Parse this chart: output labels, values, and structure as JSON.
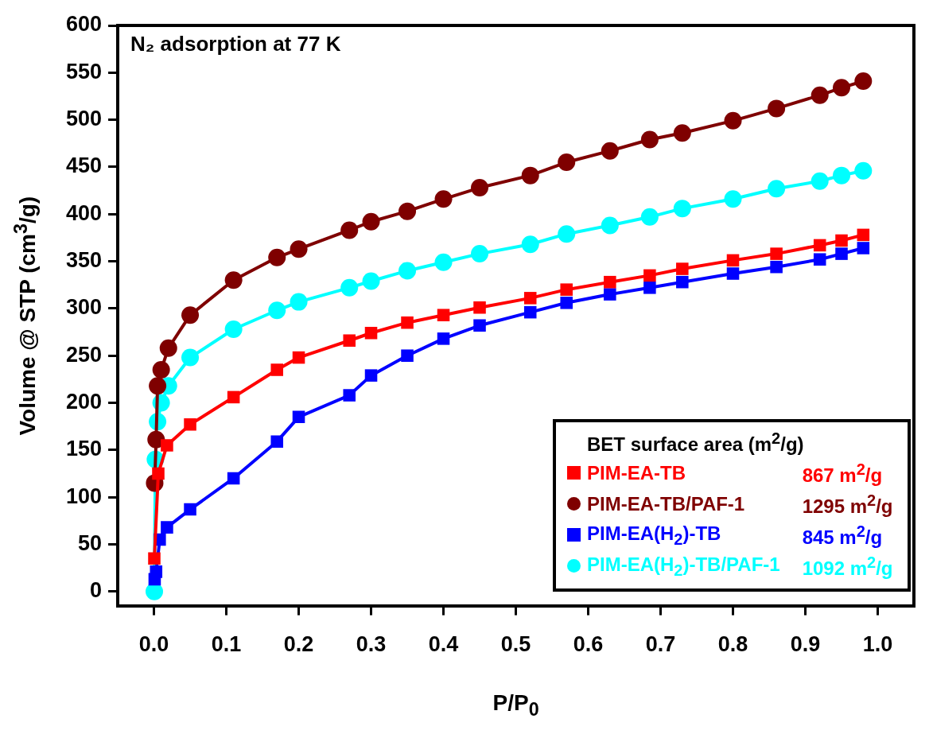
{
  "chart_data": {
    "type": "line",
    "title": "N₂ adsorption at 77 K",
    "xlabel": "P/P$_{0}$",
    "ylabel": "Volume @ STP (cm$^{3}$/g)",
    "legend_title": "BET surface area (m$^{2}$/g)",
    "annotations": [
      "867 m$^{2}$/g",
      "1295 m$^{2}$/g",
      "845 m$^{2}$/g",
      "1092 m$^{2}$/g"
    ],
    "xlim": [
      -0.05,
      1.05
    ],
    "ylim": [
      -15,
      600
    ],
    "xticks": [
      {
        "value": 0,
        "label": "0.0"
      },
      {
        "value": 0.1,
        "label": "0.1"
      },
      {
        "value": 0.2,
        "label": "0.2"
      },
      {
        "value": 0.3,
        "label": "0.3"
      },
      {
        "value": 0.4,
        "label": "0.4"
      },
      {
        "value": 0.5,
        "label": "0.5"
      },
      {
        "value": 0.6,
        "label": "0.6"
      },
      {
        "value": 0.7,
        "label": "0.7"
      },
      {
        "value": 0.8,
        "label": "0.8"
      },
      {
        "value": 0.9,
        "label": "0.9"
      },
      {
        "value": 1,
        "label": "1.0"
      }
    ],
    "yticks": [
      0,
      50,
      100,
      150,
      200,
      250,
      300,
      350,
      400,
      450,
      500,
      550,
      600
    ],
    "grid": false,
    "legend": "bottom right",
    "line_style": "solid",
    "series": [
      {
        "name": "PIM-EA-TB",
        "color": "#ff0000",
        "marker": "square",
        "x": [
          0.0005,
          0.006,
          0.018,
          0.05,
          0.11,
          0.17,
          0.2,
          0.27,
          0.3,
          0.35,
          0.4,
          0.45,
          0.52,
          0.57,
          0.63,
          0.685,
          0.73,
          0.8,
          0.86,
          0.92,
          0.95,
          0.98
        ],
        "values": [
          35,
          125,
          155,
          177,
          206,
          235,
          248,
          266,
          274,
          285,
          293,
          301,
          311,
          320,
          328,
          335,
          342,
          351,
          358,
          367,
          372,
          378
        ]
      },
      {
        "name": "PIM-EA-TB/PAF-1",
        "color": "#7f0000",
        "marker": "circle",
        "x": [
          0.001,
          0.003,
          0.005,
          0.01,
          0.02,
          0.05,
          0.11,
          0.17,
          0.2,
          0.27,
          0.3,
          0.35,
          0.4,
          0.45,
          0.52,
          0.57,
          0.63,
          0.685,
          0.73,
          0.8,
          0.86,
          0.92,
          0.95,
          0.98
        ],
        "values": [
          115,
          161,
          218,
          235,
          258,
          293,
          330,
          354,
          363,
          383,
          392,
          403,
          416,
          428,
          441,
          455,
          467,
          479,
          486,
          499,
          512,
          526,
          534,
          541
        ]
      },
      {
        "name": "PIM-EA(H$_{2}$)-TB",
        "color": "#0000ff",
        "marker": "square",
        "x": [
          0.001,
          0.003,
          0.008,
          0.018,
          0.05,
          0.11,
          0.17,
          0.2,
          0.27,
          0.3,
          0.35,
          0.4,
          0.45,
          0.52,
          0.57,
          0.63,
          0.685,
          0.73,
          0.8,
          0.86,
          0.92,
          0.95,
          0.98
        ],
        "values": [
          13,
          21,
          55,
          68,
          87,
          120,
          159,
          185,
          208,
          229,
          250,
          268,
          282,
          296,
          306,
          315,
          322,
          328,
          337,
          344,
          352,
          358,
          364
        ]
      },
      {
        "name": "PIM-EA(H$_{2}$)-TB/PAF-1",
        "color": "#00ffff",
        "marker": "circle",
        "x": [
          0.0005,
          0.002,
          0.003,
          0.005,
          0.01,
          0.02,
          0.05,
          0.11,
          0.17,
          0.2,
          0.27,
          0.3,
          0.35,
          0.4,
          0.45,
          0.52,
          0.57,
          0.63,
          0.685,
          0.73,
          0.8,
          0.86,
          0.92,
          0.95,
          0.98
        ],
        "values": [
          0,
          140,
          null,
          180,
          200,
          218,
          248,
          278,
          298,
          307,
          322,
          329,
          340,
          349,
          358,
          368,
          379,
          388,
          397,
          406,
          416,
          427,
          435,
          441,
          446
        ]
      }
    ]
  }
}
